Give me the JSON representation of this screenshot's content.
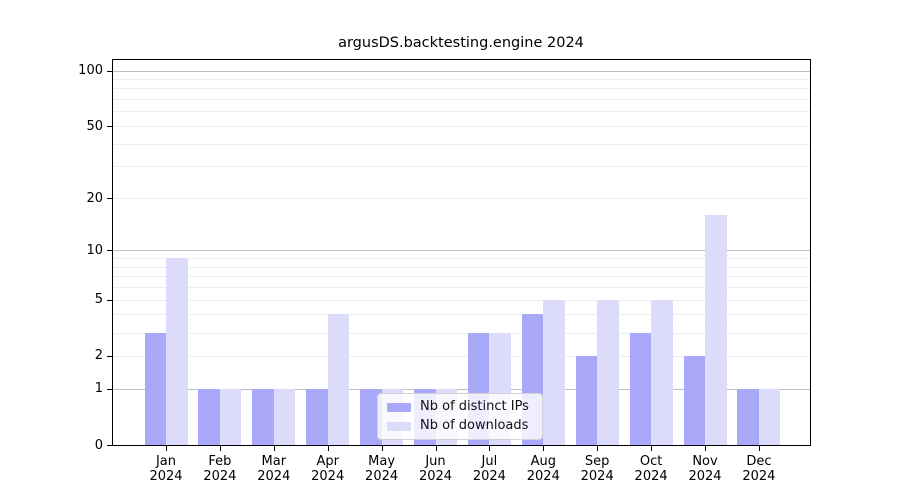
{
  "title": "argusDS.backtesting.engine 2024",
  "chart_data": {
    "type": "bar",
    "title": "argusDS.backtesting.engine 2024",
    "categories": [
      "Jan",
      "Feb",
      "Mar",
      "Apr",
      "May",
      "Jun",
      "Jul",
      "Aug",
      "Sep",
      "Oct",
      "Nov",
      "Dec"
    ],
    "category_year": "2024",
    "series": [
      {
        "name": "Nb of distinct IPs",
        "color": "#aaa8f8",
        "values": [
          3,
          1,
          1,
          1,
          1,
          1,
          3,
          4,
          2,
          3,
          2,
          1
        ]
      },
      {
        "name": "Nb of downloads",
        "color": "#dcdcfa",
        "values": [
          9,
          1,
          1,
          4,
          1,
          1,
          3,
          5,
          5,
          5,
          16,
          1
        ]
      }
    ],
    "yscale": "log1p",
    "y_ticks": [
      0,
      1,
      2,
      5,
      10,
      20,
      50,
      100
    ],
    "y_major_gridlines": [
      1,
      10,
      100
    ],
    "y_minor_gridlines": [
      2,
      3,
      4,
      5,
      6,
      7,
      8,
      9,
      20,
      30,
      40,
      50,
      60,
      70,
      80,
      90
    ],
    "ylim": [
      0,
      114
    ],
    "xlabel": "",
    "ylabel": "",
    "grid": "horizontal",
    "legend_position": "lower center"
  },
  "colors": {
    "background": "#ffffff",
    "spine": "#000000",
    "grid_major": "#bdbdc2",
    "grid_minor": "#ededf0",
    "bar_distinct_ips": "#aaa8f8",
    "bar_downloads": "#dcdcfa",
    "legend_bg": "rgba(255,255,255,0.8)",
    "legend_border": "#d2d2d2",
    "text": "#000000"
  }
}
